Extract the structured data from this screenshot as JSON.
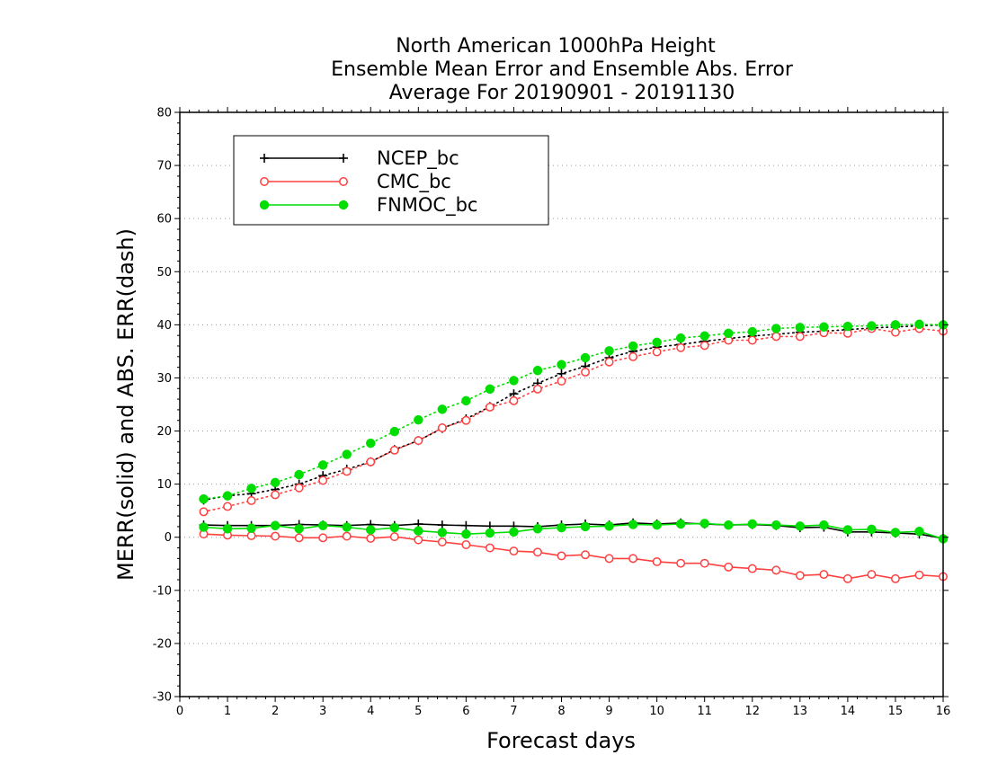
{
  "chart_data": {
    "type": "line",
    "title_lines": [
      "North American 1000hPa Height",
      "Ensemble Mean Error and Ensemble Abs. Error",
      "Average For 20190901 - 20191130"
    ],
    "xlabel": "Forecast days",
    "ylabel": "MERR(solid) and ABS. ERR(dash)",
    "xlim": [
      0,
      16
    ],
    "ylim": [
      -30,
      80
    ],
    "xticks": [
      0,
      1,
      2,
      3,
      4,
      5,
      6,
      7,
      8,
      9,
      10,
      11,
      12,
      13,
      14,
      15,
      16
    ],
    "yticks": [
      -30,
      -20,
      -10,
      0,
      10,
      20,
      30,
      40,
      50,
      60,
      70,
      80
    ],
    "grid": "dotted horizontal",
    "legend_position": "top-left",
    "x": [
      0.5,
      1,
      1.5,
      2,
      2.5,
      3,
      3.5,
      4,
      4.5,
      5,
      5.5,
      6,
      6.5,
      7,
      7.5,
      8,
      8.5,
      9,
      9.5,
      10,
      10.5,
      11,
      11.5,
      12,
      12.5,
      13,
      13.5,
      14,
      14.5,
      15,
      15.5,
      16
    ],
    "series": [
      {
        "name": "NCEP_bc",
        "color": "#000000",
        "marker": "plus",
        "merr": [
          2.3,
          2.2,
          2.2,
          2.2,
          2.4,
          2.3,
          2.2,
          2.4,
          2.2,
          2.5,
          2.3,
          2.2,
          2.1,
          2.1,
          2.0,
          2.3,
          2.5,
          2.3,
          2.7,
          2.5,
          2.7,
          2.5,
          2.3,
          2.4,
          2.2,
          1.8,
          1.9,
          1.0,
          1.0,
          0.8,
          0.6,
          -0.2
        ],
        "abs_err": [
          7.0,
          7.8,
          8.2,
          9.0,
          10.0,
          11.6,
          12.8,
          14.2,
          16.5,
          18.2,
          20.5,
          22.3,
          24.6,
          27.0,
          29.0,
          30.8,
          32.2,
          33.8,
          35.0,
          35.8,
          36.3,
          36.9,
          37.4,
          37.9,
          38.2,
          38.6,
          38.8,
          39.1,
          39.4,
          39.6,
          39.8,
          40.0
        ]
      },
      {
        "name": "CMC_bc",
        "color": "#ff4040",
        "marker": "open-circle",
        "merr": [
          0.6,
          0.4,
          0.3,
          0.2,
          -0.1,
          -0.1,
          0.2,
          -0.2,
          0.1,
          -0.5,
          -0.9,
          -1.4,
          -2.0,
          -2.6,
          -2.8,
          -3.5,
          -3.3,
          -4.0,
          -4.0,
          -4.6,
          -4.9,
          -4.9,
          -5.6,
          -5.9,
          -6.2,
          -7.2,
          -7.0,
          -7.8,
          -7.0,
          -7.8,
          -7.1,
          -7.4
        ],
        "abs_err": [
          4.8,
          5.8,
          6.9,
          8.0,
          9.3,
          10.7,
          12.4,
          14.2,
          16.4,
          18.2,
          20.6,
          22.0,
          24.5,
          25.7,
          27.9,
          29.4,
          31.1,
          33.0,
          34.0,
          34.9,
          35.7,
          36.1,
          37.1,
          37.1,
          37.8,
          37.8,
          38.5,
          38.4,
          39.3,
          38.6,
          39.3,
          38.8
        ]
      },
      {
        "name": "FNMOC_bc",
        "color": "#00dd00",
        "marker": "filled-circle",
        "merr": [
          1.9,
          1.6,
          1.7,
          2.2,
          1.6,
          2.2,
          1.9,
          1.4,
          1.8,
          1.2,
          0.9,
          0.6,
          0.8,
          1.0,
          1.6,
          1.8,
          2.0,
          2.1,
          2.4,
          2.3,
          2.5,
          2.6,
          2.3,
          2.5,
          2.3,
          2.1,
          2.3,
          1.4,
          1.5,
          0.9,
          1.1,
          -0.3
        ],
        "abs_err": [
          7.2,
          7.8,
          9.2,
          10.3,
          11.8,
          13.6,
          15.6,
          17.7,
          19.9,
          22.1,
          24.1,
          25.7,
          27.9,
          29.5,
          31.4,
          32.5,
          33.8,
          35.1,
          36.0,
          36.7,
          37.5,
          37.9,
          38.4,
          38.7,
          39.3,
          39.5,
          39.6,
          39.7,
          39.8,
          40.0,
          40.1,
          40.0
        ]
      }
    ]
  }
}
